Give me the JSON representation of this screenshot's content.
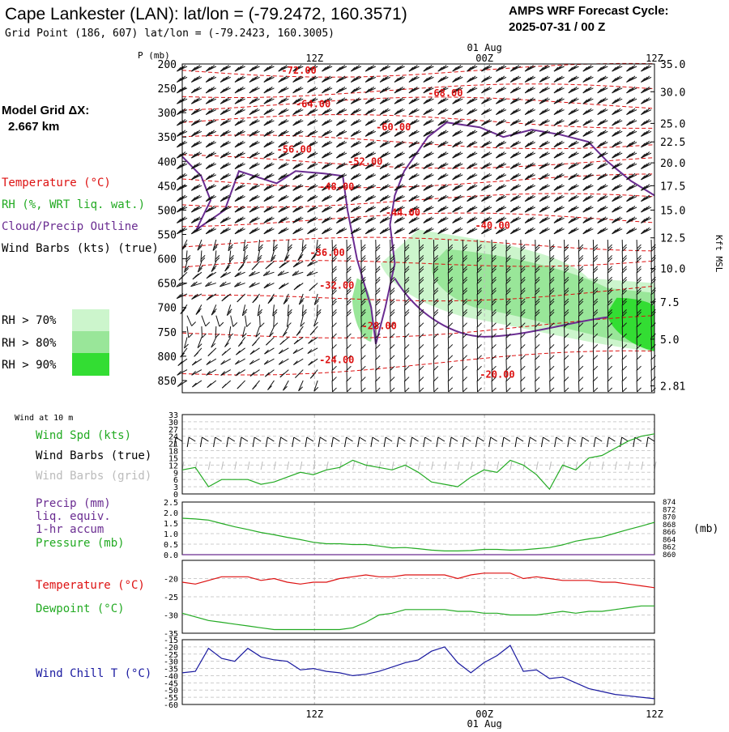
{
  "header": {
    "station": "Cape Lankester (LAN):  lat/lon = (-79.2472, 160.3571)",
    "grid_point": "Grid Point (186, 607) lat/lon = (-79.2423, 160.3005)",
    "cycle_label": "AMPS WRF Forecast Cycle:",
    "cycle_value": "2025-07-31 / 00  Z"
  },
  "side": {
    "model_grid": "Model Grid ΔX:",
    "grid_dx": "2.667 km",
    "legend_temp": "Temperature (°C)",
    "legend_rh": "RH (%, WRT liq. wat.)",
    "legend_cloud": "Cloud/Precip Outline",
    "legend_wind": "Wind Barbs (kts) (true)",
    "rh70": "RH > 70%",
    "rh80": "RH > 80%",
    "rh90": "RH > 90%",
    "wind10m": "Wind at 10 m",
    "wind_spd": "Wind Spd (kts)",
    "wind_barbs_true": "Wind Barbs (true)",
    "wind_barbs_grid": "Wind Barbs (grid)",
    "precip1": "Precip (mm)",
    "precip2": "liq. equiv.",
    "precip3": "1-hr accum",
    "pressure": "Pressure (mb)",
    "pressure_unit": "(mb)",
    "temperature": "Temperature (°C)",
    "dewpoint": "Dewpoint (°C)",
    "windchill": "Wind Chill T (°C)"
  },
  "colors": {
    "temperature": "#dd1111",
    "rh": "#22aa22",
    "cloud": "#6a2c91",
    "windchill": "#1a1aa0",
    "rh70": "#ccf5cc",
    "rh80": "#99e699",
    "rh90": "#33dd33"
  },
  "chart_data": [
    {
      "type": "contour",
      "name": "cross-section",
      "y_axis_title": "P (mb)",
      "right_axis_title": "Kft MSL",
      "time_ticks": [
        "12Z",
        "00Z",
        "12Z"
      ],
      "date_label": "01 Aug",
      "pressure_ticks": [
        200,
        250,
        300,
        350,
        400,
        450,
        500,
        550,
        600,
        650,
        700,
        750,
        800,
        850
      ],
      "height_ticks": [
        {
          "label": "35.0",
          "p": 200
        },
        {
          "label": "30.0",
          "p": 257
        },
        {
          "label": "25.0",
          "p": 322
        },
        {
          "label": "22.5",
          "p": 360
        },
        {
          "label": "20.0",
          "p": 403
        },
        {
          "label": "17.5",
          "p": 450
        },
        {
          "label": "15.0",
          "p": 500
        },
        {
          "label": "12.5",
          "p": 557
        },
        {
          "label": "10.0",
          "p": 620
        },
        {
          "label": "7.5",
          "p": 689
        },
        {
          "label": "5.0",
          "p": 765
        },
        {
          "label": "2.81",
          "p": 861
        }
      ],
      "temperature_labels": [
        {
          "label": "-72.00",
          "t": 0.21,
          "p": 213
        },
        {
          "label": "-68.00",
          "t": 0.52,
          "p": 260
        },
        {
          "label": "-64.00",
          "t": 0.24,
          "p": 282
        },
        {
          "label": "-60.00",
          "t": 0.41,
          "p": 330
        },
        {
          "label": "-56.00",
          "t": 0.2,
          "p": 375
        },
        {
          "label": "-52.00",
          "t": 0.35,
          "p": 400
        },
        {
          "label": "-48.00",
          "t": 0.29,
          "p": 452
        },
        {
          "label": "-44.00",
          "t": 0.43,
          "p": 505
        },
        {
          "label": "-40.00",
          "t": 0.62,
          "p": 532
        },
        {
          "label": "-36.00",
          "t": 0.27,
          "p": 587
        },
        {
          "label": "-32.00",
          "t": 0.29,
          "p": 655
        },
        {
          "label": "-28.00",
          "t": 0.38,
          "p": 738
        },
        {
          "label": "-24.00",
          "t": 0.29,
          "p": 808
        },
        {
          "label": "-20.00",
          "t": 0.63,
          "p": 838
        }
      ]
    },
    {
      "type": "line",
      "name": "wind-speed",
      "ylabel": "Wind Spd (kts)",
      "y_ticks": [
        0,
        3,
        6,
        9,
        12,
        15,
        18,
        21,
        24,
        27,
        30,
        33
      ],
      "ylim": [
        0,
        33
      ],
      "x": [
        0,
        1,
        2,
        3,
        4,
        5,
        6,
        7,
        8,
        9,
        10,
        11,
        12,
        13,
        14,
        15,
        16,
        17,
        18,
        19,
        20,
        21,
        22,
        23,
        24,
        25,
        26,
        27,
        28,
        29,
        30,
        31,
        32,
        33,
        34,
        35,
        36
      ],
      "values": [
        10,
        11,
        3,
        6,
        6,
        6,
        4,
        5,
        7,
        9,
        8,
        10,
        11,
        14,
        12,
        11,
        10,
        12,
        9,
        5,
        4,
        3,
        7,
        10,
        9,
        14,
        12,
        8,
        2,
        12,
        10,
        15,
        16,
        19,
        22,
        24,
        25
      ]
    },
    {
      "type": "line",
      "name": "precip-pressure",
      "ylabel": "Precip (mm)",
      "y_ticks": [
        "0.0",
        "0.5",
        "1.0",
        "1.5",
        "2.0",
        "2.5"
      ],
      "ylim": [
        0,
        2.5
      ],
      "right_ticks": [
        "860",
        "862",
        "864",
        "866",
        "868",
        "870",
        "872",
        "874"
      ],
      "right_lim": [
        860,
        874
      ],
      "x": [
        0,
        1,
        2,
        3,
        4,
        5,
        6,
        7,
        8,
        9,
        10,
        11,
        12,
        13,
        14,
        15,
        16,
        17,
        18,
        19,
        20,
        21,
        22,
        23,
        24,
        25,
        26,
        27,
        28,
        29,
        30,
        31,
        32,
        33,
        34,
        35,
        36
      ],
      "pressure_values": [
        869.7,
        869.5,
        869.2,
        868.3,
        867.4,
        866.7,
        865.9,
        865.3,
        864.6,
        864.0,
        863.3,
        862.9,
        862.9,
        862.7,
        862.7,
        862.3,
        861.8,
        861.9,
        861.6,
        861.2,
        861.0,
        861.0,
        861.1,
        861.4,
        861.4,
        861.2,
        861.3,
        861.6,
        861.9,
        862.6,
        863.6,
        864.2,
        864.7,
        865.7,
        866.7,
        867.6,
        868.6
      ],
      "precip_values": [
        0,
        0,
        0,
        0,
        0,
        0,
        0,
        0,
        0,
        0,
        0,
        0,
        0,
        0,
        0,
        0,
        0,
        0,
        0,
        0,
        0,
        0,
        0,
        0,
        0,
        0,
        0,
        0,
        0,
        0,
        0,
        0,
        0,
        0,
        0,
        0,
        0
      ]
    },
    {
      "type": "line",
      "name": "temp-dewpoint",
      "ylabel": "Temperature (°C)",
      "y_ticks": [
        -35,
        -30,
        -25,
        -20
      ],
      "ylim": [
        -35,
        -15
      ],
      "x": [
        0,
        1,
        2,
        3,
        4,
        5,
        6,
        7,
        8,
        9,
        10,
        11,
        12,
        13,
        14,
        15,
        16,
        17,
        18,
        19,
        20,
        21,
        22,
        23,
        24,
        25,
        26,
        27,
        28,
        29,
        30,
        31,
        32,
        33,
        34,
        35,
        36
      ],
      "series": [
        {
          "name": "Temperature (°C)",
          "values": [
            -21,
            -21.5,
            -20.5,
            -19.5,
            -19.5,
            -19.5,
            -20.5,
            -20,
            -21,
            -21.5,
            -21,
            -21,
            -20,
            -19.5,
            -19,
            -19.5,
            -19.5,
            -19,
            -19,
            -19,
            -19,
            -20,
            -19,
            -18.5,
            -18.5,
            -18.5,
            -20,
            -19.5,
            -20,
            -20.5,
            -20.5,
            -20.5,
            -21,
            -21,
            -21.5,
            -22,
            -22.5
          ]
        },
        {
          "name": "Dewpoint (°C)",
          "values": [
            -29.5,
            -30.5,
            -31.5,
            -32,
            -32.5,
            -33,
            -33.5,
            -34,
            -34,
            -34,
            -34,
            -34,
            -34,
            -33.5,
            -32,
            -30,
            -29.5,
            -28.5,
            -28.5,
            -28.5,
            -28.5,
            -29,
            -29,
            -29.5,
            -29.5,
            -30,
            -30,
            -30,
            -29.5,
            -29,
            -29.5,
            -29,
            -29,
            -28.5,
            -28,
            -27.5,
            -27.5
          ]
        }
      ]
    },
    {
      "type": "line",
      "name": "wind-chill",
      "ylabel": "Wind Chill T (°C)",
      "y_ticks": [
        -60,
        -55,
        -50,
        -45,
        -40,
        -35,
        -30,
        -25,
        -20,
        -15
      ],
      "ylim": [
        -60,
        -15
      ],
      "x": [
        0,
        1,
        2,
        3,
        4,
        5,
        6,
        7,
        8,
        9,
        10,
        11,
        12,
        13,
        14,
        15,
        16,
        17,
        18,
        19,
        20,
        21,
        22,
        23,
        24,
        25,
        26,
        27,
        28,
        29,
        30,
        31,
        32,
        33,
        34,
        35,
        36
      ],
      "values": [
        -38,
        -37,
        -21,
        -28,
        -30,
        -21,
        -27,
        -29,
        -30,
        -36,
        -35,
        -37,
        -38,
        -40,
        -39,
        -37,
        -34,
        -31,
        -29,
        -23,
        -20,
        -31,
        -38,
        -31,
        -26,
        -19,
        -37,
        -36,
        -42,
        -41,
        -45,
        -49,
        -51,
        -53,
        -54,
        -55,
        -56
      ]
    }
  ]
}
